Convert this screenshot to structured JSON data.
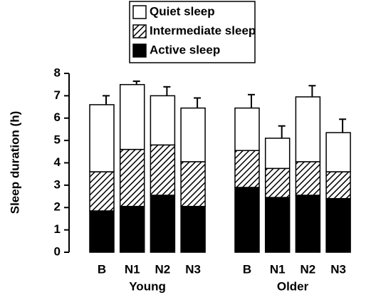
{
  "chart_data": {
    "type": "stacked-bar",
    "ylabel": "Sleep duration (h)",
    "categories": [
      "B",
      "N1",
      "N2",
      "N3",
      "B",
      "N1",
      "N2",
      "N3"
    ],
    "groups": [
      "Young",
      "Older"
    ],
    "series": [
      {
        "name": "Active sleep",
        "color": "#000000",
        "fill": "solid",
        "values": [
          1.85,
          2.05,
          2.55,
          2.05,
          2.9,
          2.45,
          2.55,
          2.4
        ]
      },
      {
        "name": "Intermediate sleep",
        "color": "#000000",
        "fill": "hatch",
        "values": [
          1.75,
          2.55,
          2.25,
          2.0,
          1.65,
          1.3,
          1.5,
          1.2
        ]
      },
      {
        "name": "Quiet sleep",
        "color": "#ffffff",
        "fill": "solid",
        "values": [
          3.0,
          2.9,
          2.2,
          2.4,
          1.9,
          1.35,
          2.9,
          1.75
        ]
      }
    ],
    "errors": [
      0.4,
      0.15,
      0.4,
      0.45,
      0.6,
      0.55,
      0.5,
      0.6
    ],
    "ylim": [
      0,
      8
    ],
    "yticks": [
      0,
      1,
      2,
      3,
      4,
      5,
      6,
      7,
      8
    ],
    "legend": "top"
  }
}
